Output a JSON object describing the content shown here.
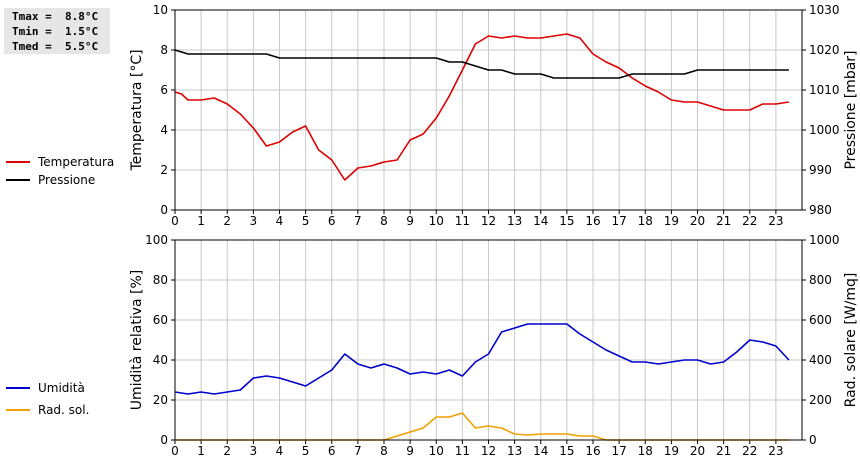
{
  "stats": {
    "tmax": "Tmax =  8.8°C",
    "tmin": "Tmin =  1.5°C",
    "tmed": "Tmed =  5.5°C"
  },
  "colors": {
    "temperature": "#dd0000",
    "pressure": "#000000",
    "humidity": "#0000cc",
    "solar": "#f0a000",
    "grid": "#c8c8c8"
  },
  "chart_data": [
    {
      "type": "line",
      "title": "",
      "xlabel": "",
      "ylabel": "Temperatura [°C]",
      "y2label": "Pressione [mbar]",
      "xlim": [
        0,
        24
      ],
      "ylim": [
        0,
        10
      ],
      "y2lim": [
        980,
        1030
      ],
      "x_ticks": [
        "0",
        "1",
        "2",
        "3",
        "4",
        "5",
        "6",
        "7",
        "8",
        "9",
        "10",
        "11",
        "12",
        "13",
        "14",
        "15",
        "16",
        "17",
        "18",
        "19",
        "20",
        "21",
        "22",
        "23"
      ],
      "y_ticks": [
        "0",
        "2",
        "4",
        "6",
        "8",
        "10"
      ],
      "y2_ticks": [
        "980",
        "990",
        "1000",
        "1010",
        "1020",
        "1030"
      ],
      "legend_position": "left",
      "grid": true,
      "series": [
        {
          "name": "Temperatura",
          "axis": "left",
          "x": [
            0,
            0.25,
            0.5,
            1,
            1.5,
            2,
            2.5,
            3,
            3.5,
            4,
            4.5,
            5,
            5.5,
            6,
            6.5,
            7,
            7.5,
            8,
            8.5,
            9,
            9.5,
            10,
            10.5,
            11,
            11.5,
            12,
            12.5,
            13,
            13.5,
            14,
            14.5,
            15,
            15.5,
            16,
            16.5,
            17,
            17.5,
            18,
            18.5,
            19,
            19.5,
            20,
            20.5,
            21,
            21.5,
            22,
            22.5,
            23,
            23.5
          ],
          "values": [
            5.9,
            5.8,
            5.5,
            5.5,
            5.6,
            5.3,
            4.8,
            4.1,
            3.2,
            3.4,
            3.9,
            4.2,
            3.0,
            2.5,
            1.5,
            2.1,
            2.2,
            2.4,
            2.5,
            3.5,
            3.8,
            4.6,
            5.7,
            7.0,
            8.3,
            8.7,
            8.6,
            8.7,
            8.6,
            8.6,
            8.7,
            8.8,
            8.6,
            7.8,
            7.4,
            7.1,
            6.6,
            6.2,
            5.9,
            5.5,
            5.4,
            5.4,
            5.2,
            5.0,
            5.0,
            5.0,
            5.3,
            5.3,
            5.4
          ]
        },
        {
          "name": "Pressione",
          "axis": "right",
          "x": [
            0,
            0.5,
            1,
            1.5,
            2,
            2.5,
            3,
            3.5,
            4,
            4.5,
            5,
            5.5,
            6,
            6.5,
            7,
            7.5,
            8,
            8.5,
            9,
            9.5,
            10,
            10.5,
            11,
            11.5,
            12,
            12.5,
            13,
            13.5,
            14,
            14.5,
            15,
            15.5,
            16,
            16.5,
            17,
            17.5,
            18,
            18.5,
            19,
            19.5,
            20,
            20.5,
            21,
            21.5,
            22,
            22.5,
            23,
            23.5
          ],
          "values": [
            1020,
            1019,
            1019,
            1019,
            1019,
            1019,
            1019,
            1019,
            1018,
            1018,
            1018,
            1018,
            1018,
            1018,
            1018,
            1018,
            1018,
            1018,
            1018,
            1018,
            1018,
            1017,
            1017,
            1016,
            1015,
            1015,
            1014,
            1014,
            1014,
            1013,
            1013,
            1013,
            1013,
            1013,
            1013,
            1014,
            1014,
            1014,
            1014,
            1014,
            1015,
            1015,
            1015,
            1015,
            1015,
            1015,
            1015,
            1015
          ]
        }
      ]
    },
    {
      "type": "line",
      "title": "",
      "xlabel": "",
      "ylabel": "Umidità relativa [%]",
      "y2label": "Rad. solare [W/mq]",
      "xlim": [
        0,
        24
      ],
      "ylim": [
        0,
        100
      ],
      "y2lim": [
        0,
        1000
      ],
      "x_ticks": [
        "0",
        "1",
        "2",
        "3",
        "4",
        "5",
        "6",
        "7",
        "8",
        "9",
        "10",
        "11",
        "12",
        "13",
        "14",
        "15",
        "16",
        "17",
        "18",
        "19",
        "20",
        "21",
        "22",
        "23"
      ],
      "y_ticks": [
        "0",
        "20",
        "40",
        "60",
        "80",
        "100"
      ],
      "y2_ticks": [
        "0",
        "200",
        "400",
        "600",
        "800",
        "1000"
      ],
      "legend_position": "left",
      "grid": true,
      "series": [
        {
          "name": "Umidità",
          "axis": "left",
          "x": [
            0,
            0.5,
            1,
            1.5,
            2,
            2.5,
            3,
            3.5,
            4,
            4.5,
            5,
            5.5,
            6,
            6.5,
            7,
            7.5,
            8,
            8.5,
            9,
            9.5,
            10,
            10.5,
            11,
            11.5,
            12,
            12.5,
            13,
            13.5,
            14,
            14.5,
            15,
            15.5,
            16,
            16.5,
            17,
            17.5,
            18,
            18.5,
            19,
            19.5,
            20,
            20.5,
            21,
            21.5,
            22,
            22.5,
            23,
            23.5
          ],
          "values": [
            24,
            23,
            24,
            23,
            24,
            25,
            31,
            32,
            31,
            29,
            27,
            31,
            35,
            43,
            38,
            36,
            38,
            36,
            33,
            34,
            33,
            35,
            32,
            39,
            43,
            54,
            56,
            58,
            58,
            58,
            58,
            53,
            49,
            45,
            42,
            39,
            39,
            38,
            39,
            40,
            40,
            38,
            39,
            44,
            50,
            49,
            47,
            40
          ]
        },
        {
          "name": "Rad. sol.",
          "axis": "right",
          "x": [
            0,
            0.5,
            1,
            1.5,
            2,
            2.5,
            3,
            3.5,
            4,
            4.5,
            5,
            5.5,
            6,
            6.5,
            7,
            7.5,
            8,
            8.5,
            9,
            9.5,
            10,
            10.5,
            11,
            11.5,
            12,
            12.5,
            13,
            13.5,
            14,
            14.5,
            15,
            15.5,
            16,
            16.5,
            17,
            17.5,
            18,
            18.5,
            19,
            19.5,
            20,
            20.5,
            21,
            21.5,
            22,
            22.5,
            23,
            23.5
          ],
          "values": [
            0,
            0,
            0,
            0,
            0,
            0,
            0,
            0,
            0,
            0,
            0,
            0,
            0,
            0,
            0,
            0,
            0,
            20,
            40,
            60,
            115,
            115,
            135,
            60,
            70,
            60,
            30,
            25,
            30,
            30,
            30,
            20,
            20,
            0,
            0,
            0,
            0,
            0,
            0,
            0,
            0,
            0,
            0,
            0,
            0,
            0,
            0,
            0
          ]
        }
      ]
    }
  ]
}
